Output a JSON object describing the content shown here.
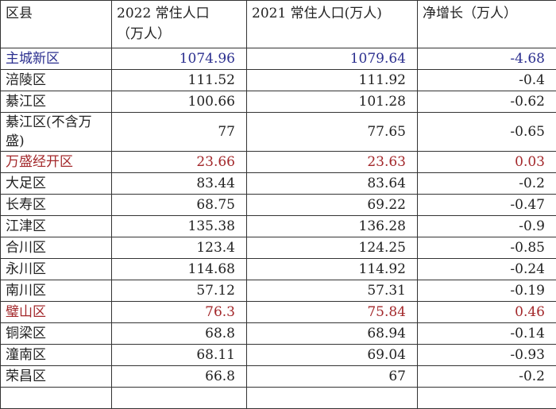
{
  "table": {
    "header": [
      "区县",
      "2022 常住人口（万人）",
      "2021 常住人口(万人)",
      "净增长（万人）"
    ],
    "rows": [
      {
        "cells": [
          "主城新区",
          "1074.96",
          "1079.64",
          "-4.68"
        ],
        "color": "#2b2f8f"
      },
      {
        "cells": [
          "涪陵区",
          "111.52",
          "111.92",
          "-0.4"
        ]
      },
      {
        "cells": [
          "綦江区",
          "100.66",
          "101.28",
          "-0.62"
        ]
      },
      {
        "cells": [
          "綦江区(不含万盛)",
          "77",
          "77.65",
          "-0.65"
        ]
      },
      {
        "cells": [
          "万盛经开区",
          "23.66",
          "23.63",
          "0.03"
        ],
        "color": "#a3282b"
      },
      {
        "cells": [
          "大足区",
          "83.44",
          "83.64",
          "-0.2"
        ]
      },
      {
        "cells": [
          "长寿区",
          "68.75",
          "69.22",
          "-0.47"
        ]
      },
      {
        "cells": [
          "江津区",
          "135.38",
          "136.28",
          "-0.9"
        ]
      },
      {
        "cells": [
          "合川区",
          "123.4",
          "124.25",
          "-0.85"
        ]
      },
      {
        "cells": [
          "永川区",
          "114.68",
          "114.92",
          "-0.24"
        ]
      },
      {
        "cells": [
          "南川区",
          "57.12",
          "57.31",
          "-0.19"
        ]
      },
      {
        "cells": [
          "璧山区",
          "76.3",
          "75.84",
          "0.46"
        ],
        "color": "#a3282b"
      },
      {
        "cells": [
          "铜梁区",
          "68.8",
          "68.94",
          "-0.14"
        ]
      },
      {
        "cells": [
          "潼南区",
          "68.11",
          "69.04",
          "-0.93"
        ]
      },
      {
        "cells": [
          "荣昌区",
          "66.8",
          "67",
          "-0.2"
        ]
      }
    ]
  }
}
